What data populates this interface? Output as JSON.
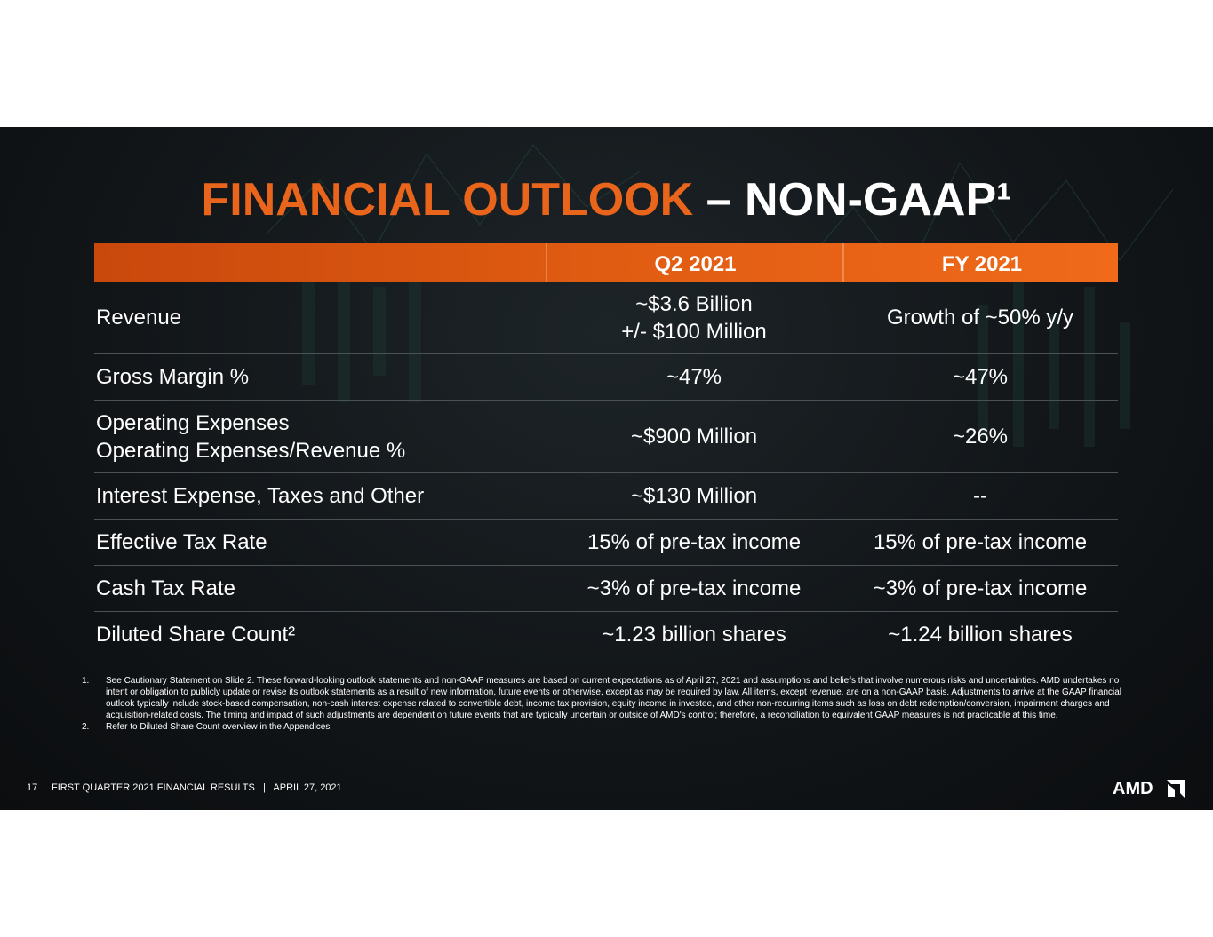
{
  "title": {
    "accent": "FINANCIAL OUTLOOK",
    "rest": " – NON-GAAP¹"
  },
  "table": {
    "headers": [
      "Q2 2021",
      "FY 2021"
    ],
    "rows": [
      {
        "label": [
          "Revenue"
        ],
        "q2": [
          "~$3.6 Billion",
          "+/- $100 Million"
        ],
        "fy": [
          "Growth of ~50% y/y"
        ]
      },
      {
        "label": [
          "Gross Margin %"
        ],
        "q2": [
          "~47%"
        ],
        "fy": [
          "~47%"
        ]
      },
      {
        "label": [
          "Operating Expenses",
          "Operating Expenses/Revenue %"
        ],
        "q2": [
          "~$900 Million"
        ],
        "fy": [
          "~26%"
        ]
      },
      {
        "label": [
          "Interest Expense, Taxes and Other"
        ],
        "q2": [
          "~$130 Million"
        ],
        "fy": [
          "--"
        ]
      },
      {
        "label": [
          "Effective Tax Rate"
        ],
        "q2": [
          "15% of pre-tax income"
        ],
        "fy": [
          "15% of pre-tax income"
        ]
      },
      {
        "label": [
          "Cash Tax Rate"
        ],
        "q2": [
          "~3% of pre-tax income"
        ],
        "fy": [
          "~3% of pre-tax income"
        ]
      },
      {
        "label": [
          "Diluted Share Count²"
        ],
        "q2": [
          "~1.23 billion shares"
        ],
        "fy": [
          "~1.24 billion shares"
        ]
      }
    ]
  },
  "footnotes": [
    {
      "num": "1.",
      "text": "See Cautionary Statement on Slide 2. These forward-looking outlook statements and non-GAAP measures are based on current expectations as of April  27, 2021 and assumptions and beliefs that involve numerous risks and uncertainties. AMD undertakes no intent or obligation to publicly update or revise its outlook statements as a result of new information, future events or otherwise, except as may be required by law. All items, except revenue, are on a non-GAAP basis. Adjustments to arrive at the GAAP financial outlook typically include stock-based compensation, non-cash interest expense related to convertible debt, income tax provision, equity income in investee, and other non-recurring items such as loss on debt redemption/conversion, impairment charges and acquisition-related costs. The timing and impact of such adjustments are dependent on future events that are typically uncertain or outside of AMD's control; therefore, a reconciliation to equivalent GAAP measures is not practicable at this time."
    },
    {
      "num": "2.",
      "text": "Refer to Diluted Share Count overview in the Appendices"
    }
  ],
  "footer": {
    "page": "17",
    "text": "FIRST QUARTER 2021 FINANCIAL RESULTS   |   APRIL 27, 2021"
  },
  "logo": {
    "text": "AMD",
    "icon": "amd-arrow-icon"
  },
  "colors": {
    "accent": "#e9651b",
    "background": "#121619"
  }
}
